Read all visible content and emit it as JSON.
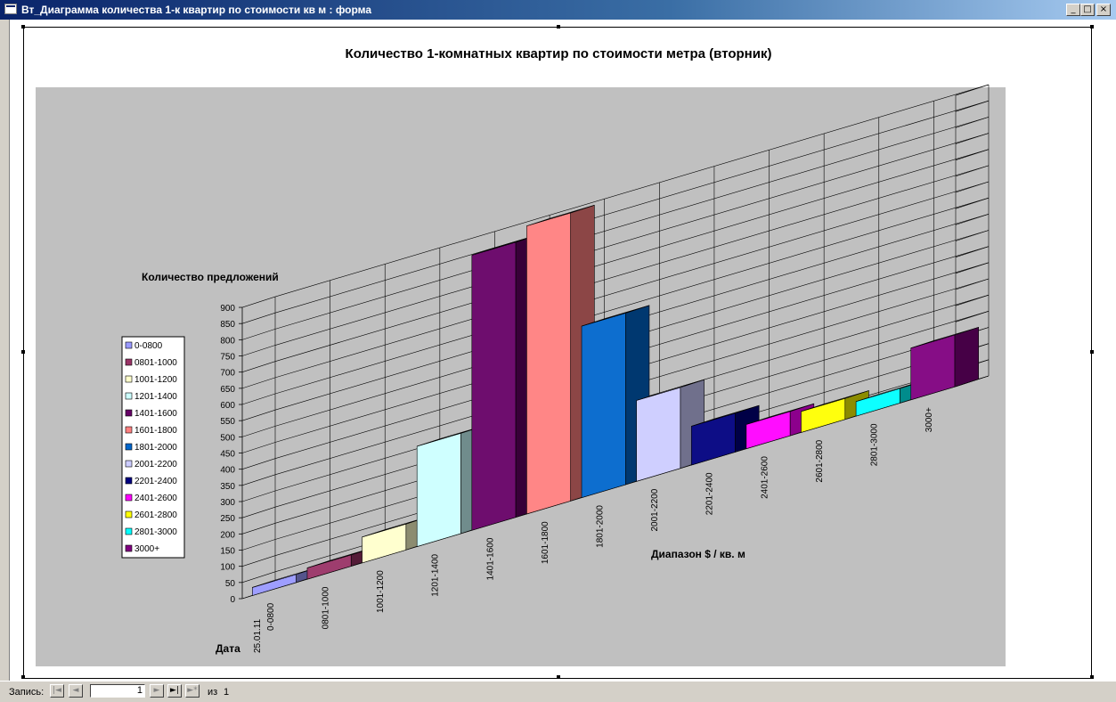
{
  "window": {
    "title": "Вт_Диаграмма количества 1-к квартир по стоимости кв м : форма",
    "minimize_glyph": "_",
    "maximize_glyph": "□",
    "close_glyph": "×"
  },
  "status": {
    "record_label": "Запись:",
    "record_value": "1",
    "of_label": "из",
    "total": "1",
    "first_glyph": "|◄",
    "prev_glyph": "◄",
    "next_glyph": "►",
    "last_glyph": "►|",
    "new_glyph": "►*"
  },
  "chart_data": {
    "type": "bar",
    "subtype": "3d-column",
    "title": "Количество 1-комнатных квартир по стоимости метра (вторник)",
    "ylabel": "Количество предложений",
    "xlabel": "Диапазон $ / кв. м",
    "depth_label": "Дата",
    "series_label": "25.01.11",
    "ylim": [
      0,
      900
    ],
    "ytick_step": 50,
    "yticks": [
      "0",
      "50",
      "100",
      "150",
      "200",
      "250",
      "300",
      "350",
      "400",
      "450",
      "500",
      "550",
      "600",
      "650",
      "700",
      "750",
      "800",
      "850",
      "900"
    ],
    "categories": [
      "0-0800",
      "0801-1000",
      "1001-1200",
      "1201-1400",
      "1401-1600",
      "1601-1800",
      "1801-2000",
      "2001-2200",
      "2201-2400",
      "2401-2600",
      "2601-2800",
      "2801-3000",
      "3000+"
    ],
    "values": [
      25,
      35,
      80,
      310,
      850,
      890,
      530,
      250,
      120,
      75,
      65,
      45,
      160
    ],
    "colors": [
      "#9999ff",
      "#993366",
      "#ffffcc",
      "#ccffff",
      "#660066",
      "#ff8080",
      "#0066cc",
      "#ccccff",
      "#000080",
      "#ff00ff",
      "#ffff00",
      "#00ffff",
      "#800080"
    ],
    "legend_position": "left",
    "grid": true,
    "wall_color": "#c0c0c0",
    "floor_color": "#808080"
  }
}
